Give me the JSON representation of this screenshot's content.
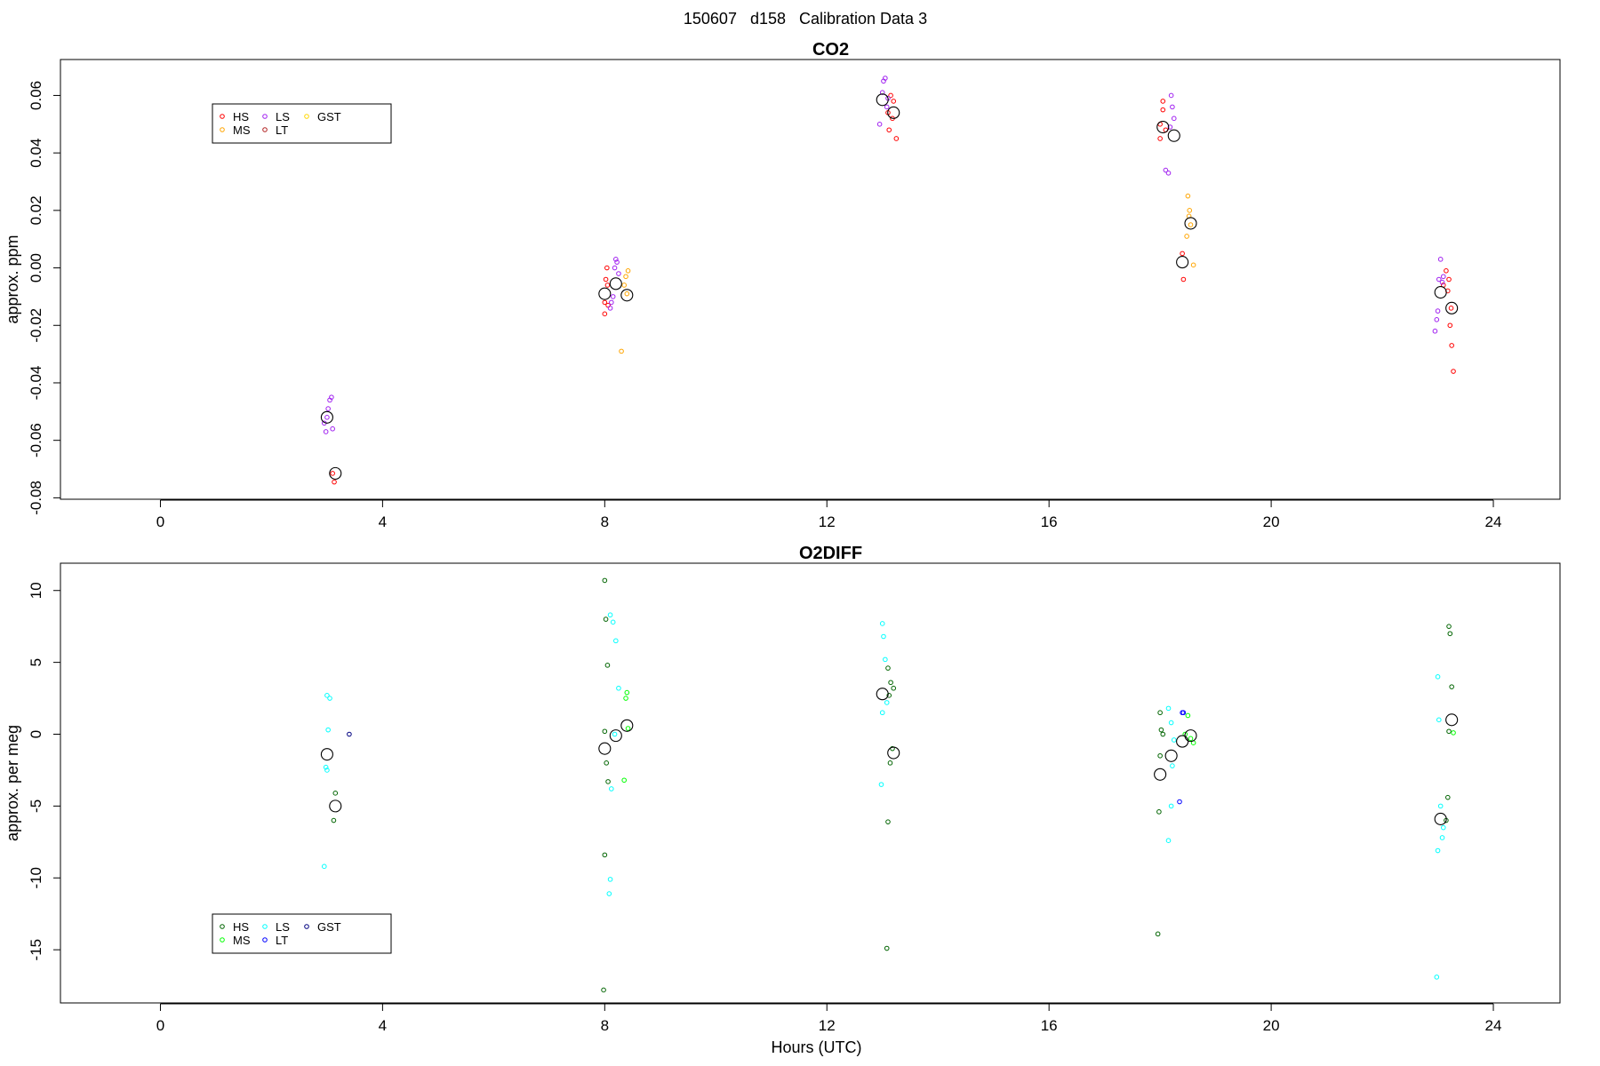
{
  "figure_title": "150607   d158   Calibration Data 3",
  "chart_data": [
    {
      "type": "scatter",
      "title": "CO2",
      "xlabel": "",
      "ylabel": "approx. ppm",
      "xlim": [
        -1.8,
        25.2
      ],
      "ylim": [
        -0.0805,
        0.0725
      ],
      "xticks": [
        0,
        4,
        8,
        12,
        16,
        20,
        24
      ],
      "yticks": [
        -0.08,
        -0.06,
        -0.04,
        -0.02,
        0.0,
        0.02,
        0.04,
        0.06
      ],
      "ytick_labels": [
        "-0.08",
        "-0.06",
        "-0.04",
        "-0.02",
        "0.00",
        "0.02",
        "0.04",
        "0.06"
      ],
      "legend": {
        "placement": "top-left",
        "entries": [
          {
            "label": "HS",
            "color": "#ff0000"
          },
          {
            "label": "MS",
            "color": "#ffa500"
          },
          {
            "label": "LS",
            "color": "#a020f0"
          },
          {
            "label": "LT",
            "color": "#b22222"
          },
          {
            "label": "GST",
            "color": "#ffd700"
          }
        ]
      },
      "series": [
        {
          "color": "#ff0000",
          "points": [
            [
              3.1,
              -0.0715
            ],
            [
              3.13,
              -0.0745
            ],
            [
              8.0,
              -0.012
            ],
            [
              8.02,
              -0.004
            ],
            [
              8.04,
              0.0
            ],
            [
              8.06,
              -0.013
            ],
            [
              8.0,
              -0.016
            ],
            [
              8.05,
              -0.006
            ],
            [
              13.1,
              0.054
            ],
            [
              13.15,
              0.06
            ],
            [
              13.2,
              0.058
            ],
            [
              13.25,
              0.045
            ],
            [
              13.12,
              0.048
            ],
            [
              13.18,
              0.052
            ],
            [
              18.0,
              0.05
            ],
            [
              18.05,
              0.055
            ],
            [
              18.1,
              0.048
            ],
            [
              18.0,
              0.045
            ],
            [
              18.05,
              0.058
            ],
            [
              18.4,
              0.005
            ],
            [
              18.42,
              -0.004
            ],
            [
              23.1,
              -0.006
            ],
            [
              23.15,
              -0.001
            ],
            [
              23.2,
              -0.004
            ],
            [
              23.25,
              -0.027
            ],
            [
              23.22,
              -0.02
            ],
            [
              23.28,
              -0.036
            ],
            [
              23.18,
              -0.008
            ],
            [
              23.24,
              -0.014
            ]
          ]
        },
        {
          "color": "#ffa500",
          "points": [
            [
              8.3,
              -0.029
            ],
            [
              8.35,
              -0.006
            ],
            [
              8.4,
              -0.009
            ],
            [
              8.38,
              -0.003
            ],
            [
              8.42,
              -0.001
            ],
            [
              18.5,
              0.025
            ],
            [
              18.52,
              0.018
            ],
            [
              18.55,
              0.015
            ],
            [
              18.48,
              0.011
            ],
            [
              18.6,
              0.001
            ],
            [
              18.53,
              0.02
            ]
          ]
        },
        {
          "color": "#a020f0",
          "points": [
            [
              2.95,
              -0.054
            ],
            [
              3.0,
              -0.052
            ],
            [
              3.05,
              -0.046
            ],
            [
              3.08,
              -0.045
            ],
            [
              3.1,
              -0.056
            ],
            [
              3.02,
              -0.049
            ],
            [
              2.98,
              -0.057
            ],
            [
              8.1,
              -0.014
            ],
            [
              8.15,
              -0.01
            ],
            [
              8.2,
              0.003
            ],
            [
              8.22,
              0.002
            ],
            [
              8.25,
              -0.002
            ],
            [
              8.12,
              -0.012
            ],
            [
              8.18,
              0.0
            ],
            [
              12.95,
              0.05
            ],
            [
              13.0,
              0.061
            ],
            [
              13.02,
              0.065
            ],
            [
              13.05,
              0.066
            ],
            [
              13.08,
              0.056
            ],
            [
              13.1,
              0.059
            ],
            [
              18.1,
              0.034
            ],
            [
              18.15,
              0.033
            ],
            [
              18.2,
              0.06
            ],
            [
              18.25,
              0.052
            ],
            [
              18.22,
              0.056
            ],
            [
              18.18,
              0.049
            ],
            [
              22.95,
              -0.022
            ],
            [
              23.0,
              -0.015
            ],
            [
              23.02,
              -0.004
            ],
            [
              23.05,
              0.003
            ],
            [
              23.08,
              -0.005
            ],
            [
              22.98,
              -0.018
            ],
            [
              23.1,
              -0.003
            ]
          ]
        }
      ],
      "means": [
        [
          3.0,
          -0.052
        ],
        [
          3.15,
          -0.0715
        ],
        [
          8.0,
          -0.009
        ],
        [
          8.2,
          -0.0055
        ],
        [
          8.4,
          -0.0095
        ],
        [
          13.0,
          0.0585
        ],
        [
          13.2,
          0.054
        ],
        [
          18.05,
          0.049
        ],
        [
          18.25,
          0.046
        ],
        [
          18.4,
          0.002
        ],
        [
          18.55,
          0.0155
        ],
        [
          23.05,
          -0.0085
        ],
        [
          23.25,
          -0.014
        ]
      ]
    },
    {
      "type": "scatter",
      "title": "O2DIFF",
      "xlabel": "Hours (UTC)",
      "ylabel": "approx. per meg",
      "xlim": [
        -1.8,
        25.2
      ],
      "ylim": [
        -18.7,
        11.9
      ],
      "xticks": [
        0,
        4,
        8,
        12,
        16,
        20,
        24
      ],
      "yticks": [
        -15,
        -10,
        -5,
        0,
        5,
        10
      ],
      "ytick_labels": [
        "-15",
        "-10",
        "-5",
        "0",
        "5",
        "10"
      ],
      "legend": {
        "placement": "bottom-left",
        "entries": [
          {
            "label": "HS",
            "color": "#006400"
          },
          {
            "label": "MS",
            "color": "#00ff00"
          },
          {
            "label": "LS",
            "color": "#00ffff"
          },
          {
            "label": "LT",
            "color": "#0000ff"
          },
          {
            "label": "GST",
            "color": "#000080"
          }
        ]
      },
      "series": [
        {
          "color": "#006400",
          "points": [
            [
              3.15,
              -4.1
            ],
            [
              3.12,
              -6.0
            ],
            [
              8.0,
              10.7
            ],
            [
              8.02,
              8.0
            ],
            [
              8.05,
              4.8
            ],
            [
              8.0,
              0.2
            ],
            [
              8.03,
              -2.0
            ],
            [
              8.06,
              -3.3
            ],
            [
              8.0,
              -8.4
            ],
            [
              7.98,
              -17.8
            ],
            [
              13.1,
              4.6
            ],
            [
              13.15,
              3.6
            ],
            [
              13.2,
              3.2
            ],
            [
              13.12,
              2.7
            ],
            [
              13.18,
              -1.0
            ],
            [
              13.14,
              -2.0
            ],
            [
              13.1,
              -6.1
            ],
            [
              13.08,
              -14.9
            ],
            [
              18.0,
              1.5
            ],
            [
              18.02,
              0.3
            ],
            [
              18.05,
              0.0
            ],
            [
              18.0,
              -1.5
            ],
            [
              17.98,
              -5.4
            ],
            [
              17.96,
              -13.9
            ],
            [
              23.2,
              7.5
            ],
            [
              23.22,
              7.0
            ],
            [
              23.25,
              3.3
            ],
            [
              23.2,
              0.2
            ],
            [
              23.18,
              -4.4
            ],
            [
              23.15,
              -6.0
            ]
          ]
        },
        {
          "color": "#00ff00",
          "points": [
            [
              8.4,
              2.9
            ],
            [
              8.38,
              2.5
            ],
            [
              8.42,
              0.4
            ],
            [
              8.35,
              -3.2
            ],
            [
              18.5,
              1.3
            ],
            [
              18.55,
              -0.3
            ],
            [
              18.6,
              -0.6
            ],
            [
              18.45,
              0.0
            ],
            [
              23.28,
              0.1
            ]
          ]
        },
        {
          "color": "#00ffff",
          "points": [
            [
              3.0,
              2.7
            ],
            [
              3.05,
              2.5
            ],
            [
              3.02,
              0.3
            ],
            [
              2.98,
              -2.3
            ],
            [
              3.0,
              -2.5
            ],
            [
              2.95,
              -9.2
            ],
            [
              8.1,
              8.3
            ],
            [
              8.15,
              7.8
            ],
            [
              8.2,
              6.5
            ],
            [
              8.25,
              3.2
            ],
            [
              8.18,
              0.0
            ],
            [
              8.12,
              -3.8
            ],
            [
              8.1,
              -10.1
            ],
            [
              8.08,
              -11.1
            ],
            [
              13.0,
              7.7
            ],
            [
              13.02,
              6.8
            ],
            [
              13.05,
              5.2
            ],
            [
              13.08,
              2.2
            ],
            [
              13.0,
              1.5
            ],
            [
              12.98,
              -3.5
            ],
            [
              18.15,
              1.8
            ],
            [
              18.2,
              0.8
            ],
            [
              18.25,
              -0.4
            ],
            [
              18.22,
              -2.2
            ],
            [
              18.2,
              -5.0
            ],
            [
              18.15,
              -7.4
            ],
            [
              23.0,
              4.0
            ],
            [
              23.02,
              1.0
            ],
            [
              23.05,
              -5.0
            ],
            [
              23.1,
              -6.5
            ],
            [
              23.08,
              -7.2
            ],
            [
              23.0,
              -8.1
            ],
            [
              22.98,
              -16.9
            ]
          ]
        },
        {
          "color": "#0000ff",
          "points": [
            [
              18.4,
              1.5
            ],
            [
              18.42,
              1.5
            ],
            [
              18.35,
              -4.7
            ]
          ]
        },
        {
          "color": "#000080",
          "points": [
            [
              3.4,
              0.0
            ]
          ]
        }
      ],
      "means": [
        [
          3.0,
          -1.4
        ],
        [
          3.15,
          -5.0
        ],
        [
          8.0,
          -1.0
        ],
        [
          8.2,
          -0.1
        ],
        [
          8.4,
          0.6
        ],
        [
          13.0,
          2.8
        ],
        [
          13.2,
          -1.3
        ],
        [
          18.0,
          -2.8
        ],
        [
          18.2,
          -1.5
        ],
        [
          18.4,
          -0.5
        ],
        [
          18.55,
          -0.1
        ],
        [
          23.05,
          -5.9
        ],
        [
          23.25,
          1.0
        ]
      ]
    }
  ]
}
